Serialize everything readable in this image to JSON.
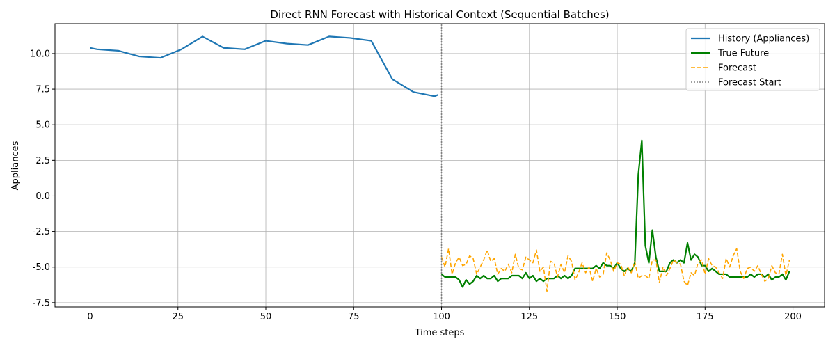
{
  "chart_data": {
    "type": "line",
    "title": "Direct RNN Forecast with Historical Context (Sequential Batches)",
    "xlabel": "Time steps",
    "ylabel": "Appliances",
    "xlim": [
      -10,
      209
    ],
    "ylim": [
      -7.8,
      12.1
    ],
    "xticks": [
      0,
      25,
      50,
      75,
      100,
      125,
      150,
      175,
      200
    ],
    "yticks": [
      -7.5,
      -5.0,
      -2.5,
      0.0,
      2.5,
      5.0,
      7.5,
      10.0
    ],
    "grid": true,
    "legend_position": "top-right",
    "series": [
      {
        "name": "History (Appliances)",
        "color": "#1f77b4",
        "style": "solid",
        "x": [
          0,
          2,
          8,
          14,
          20,
          26,
          32,
          38,
          44,
          50,
          56,
          62,
          68,
          74,
          80,
          86,
          92,
          98,
          99
        ],
        "y": [
          10.4,
          10.3,
          10.2,
          9.8,
          9.7,
          10.3,
          11.2,
          10.4,
          10.3,
          10.9,
          10.7,
          10.6,
          11.2,
          11.1,
          10.9,
          8.2,
          7.3,
          7.0,
          7.1
        ]
      },
      {
        "name": "True Future",
        "color": "#008000",
        "style": "solid",
        "x": [
          100,
          101,
          102,
          103,
          104,
          105,
          106,
          107,
          108,
          109,
          110,
          111,
          112,
          113,
          114,
          115,
          116,
          117,
          118,
          119,
          120,
          121,
          122,
          123,
          124,
          125,
          126,
          127,
          128,
          129,
          130,
          131,
          132,
          133,
          134,
          135,
          136,
          137,
          138,
          139,
          140,
          141,
          142,
          143,
          144,
          145,
          146,
          147,
          148,
          149,
          150,
          151,
          152,
          153,
          154,
          155,
          156,
          157,
          158,
          159,
          160,
          161,
          162,
          163,
          164,
          165,
          166,
          167,
          168,
          169,
          170,
          171,
          172,
          173,
          174,
          175,
          176,
          177,
          178,
          179,
          180,
          181,
          182,
          183,
          184,
          185,
          186,
          187,
          188,
          189,
          190,
          191,
          192,
          193,
          194,
          195,
          196,
          197,
          198,
          199
        ],
        "y": [
          -5.5,
          -5.7,
          -5.7,
          -5.7,
          -5.7,
          -5.9,
          -6.4,
          -5.9,
          -6.2,
          -6.0,
          -5.6,
          -5.8,
          -5.6,
          -5.8,
          -5.8,
          -5.6,
          -6.0,
          -5.8,
          -5.8,
          -5.8,
          -5.6,
          -5.6,
          -5.6,
          -5.8,
          -5.4,
          -5.8,
          -5.6,
          -6.0,
          -5.8,
          -6.0,
          -5.8,
          -5.8,
          -5.8,
          -5.6,
          -5.8,
          -5.6,
          -5.8,
          -5.6,
          -5.1,
          -5.1,
          -5.1,
          -5.1,
          -5.1,
          -5.1,
          -4.9,
          -5.1,
          -4.7,
          -4.9,
          -4.9,
          -5.1,
          -4.7,
          -5.1,
          -5.3,
          -5.1,
          -5.3,
          -4.7,
          1.5,
          3.9,
          -3.5,
          -4.7,
          -2.4,
          -4.3,
          -5.3,
          -5.3,
          -5.3,
          -4.7,
          -4.5,
          -4.7,
          -4.5,
          -4.7,
          -3.3,
          -4.5,
          -4.1,
          -4.3,
          -4.9,
          -4.9,
          -5.3,
          -5.1,
          -5.3,
          -5.5,
          -5.5,
          -5.5,
          -5.7,
          -5.7,
          -5.7,
          -5.7,
          -5.7,
          -5.7,
          -5.5,
          -5.7,
          -5.5,
          -5.5,
          -5.7,
          -5.5,
          -5.9,
          -5.7,
          -5.7,
          -5.5,
          -5.9,
          -5.3
        ]
      },
      {
        "name": "Forecast",
        "color": "#ffa500",
        "style": "dashed",
        "x": [
          100,
          101,
          102,
          103,
          104,
          105,
          106,
          107,
          108,
          109,
          110,
          111,
          112,
          113,
          114,
          115,
          116,
          117,
          118,
          119,
          120,
          121,
          122,
          123,
          124,
          125,
          126,
          127,
          128,
          129,
          130,
          131,
          132,
          133,
          134,
          135,
          136,
          137,
          138,
          139,
          140,
          141,
          142,
          143,
          144,
          145,
          146,
          147,
          148,
          149,
          150,
          151,
          152,
          153,
          154,
          155,
          156,
          157,
          158,
          159,
          160,
          161,
          162,
          163,
          164,
          165,
          166,
          167,
          168,
          169,
          170,
          171,
          172,
          173,
          174,
          175,
          176,
          177,
          178,
          179,
          180,
          181,
          182,
          183,
          184,
          185,
          186,
          187,
          188,
          189,
          190,
          191,
          192,
          193,
          194,
          195,
          196,
          197,
          198,
          199
        ],
        "y": [
          -4.3,
          -5.0,
          -3.7,
          -5.5,
          -4.7,
          -4.3,
          -4.9,
          -4.8,
          -4.2,
          -4.4,
          -5.5,
          -5.0,
          -4.5,
          -3.8,
          -4.6,
          -4.4,
          -5.5,
          -5.1,
          -5.3,
          -4.8,
          -5.4,
          -4.1,
          -5.1,
          -5.2,
          -4.3,
          -4.5,
          -4.7,
          -3.8,
          -5.3,
          -5.0,
          -6.7,
          -4.6,
          -4.7,
          -5.7,
          -4.8,
          -5.4,
          -4.2,
          -4.6,
          -5.9,
          -5.4,
          -4.7,
          -5.4,
          -5.0,
          -6.0,
          -5.1,
          -5.7,
          -5.5,
          -4.0,
          -4.5,
          -5.3,
          -4.7,
          -4.8,
          -5.6,
          -5.0,
          -5.4,
          -4.6,
          -5.8,
          -5.6,
          -5.6,
          -5.8,
          -4.5,
          -4.5,
          -6.1,
          -5.0,
          -5.6,
          -5.1,
          -4.5,
          -4.7,
          -4.8,
          -6.0,
          -6.3,
          -5.4,
          -5.6,
          -4.7,
          -4.5,
          -5.5,
          -4.4,
          -4.9,
          -5.0,
          -5.4,
          -5.8,
          -4.4,
          -5.0,
          -4.2,
          -3.7,
          -5.3,
          -5.8,
          -5.1,
          -5.0,
          -5.3,
          -4.9,
          -5.5,
          -6.0,
          -5.8,
          -4.9,
          -5.4,
          -5.5,
          -4.1,
          -5.6,
          -4.5
        ]
      },
      {
        "name": "Forecast Start",
        "color": "#808080",
        "style": "dotted",
        "x": [
          100,
          100
        ],
        "y": [
          -7.8,
          12.1
        ]
      }
    ]
  }
}
